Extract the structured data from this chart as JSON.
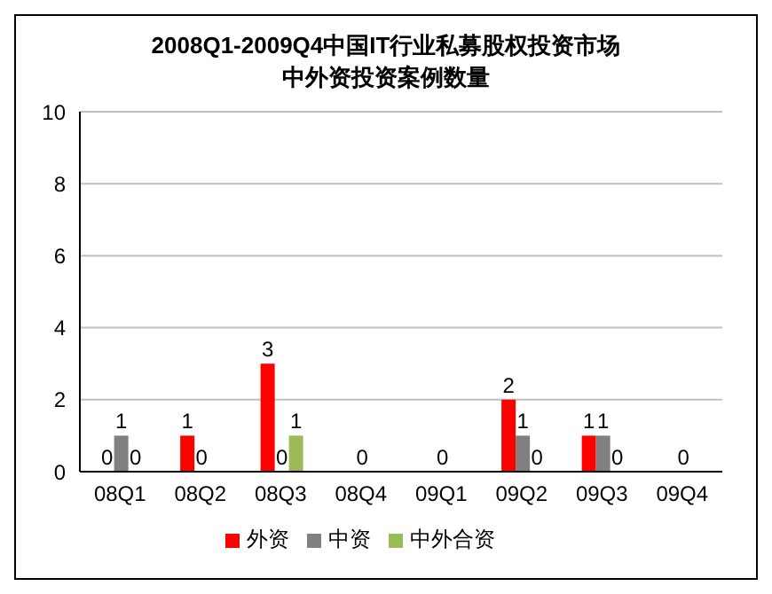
{
  "chart_data": {
    "type": "bar",
    "title": "2008Q1-2009Q4中国IT行业私募股权投资市场",
    "subtitle": "中外资投资案例数量",
    "categories": [
      "08Q1",
      "08Q2",
      "08Q3",
      "08Q4",
      "09Q1",
      "09Q2",
      "09Q3",
      "09Q4"
    ],
    "series": [
      {
        "name": "外资",
        "color": "#ff0000",
        "values": [
          0,
          1,
          3,
          null,
          null,
          2,
          1,
          null
        ]
      },
      {
        "name": "中资",
        "color": "#808080",
        "values": [
          1,
          0,
          0,
          0,
          0,
          1,
          1,
          0
        ]
      },
      {
        "name": "中外合资",
        "color": "#9bbb59",
        "values": [
          0,
          null,
          1,
          null,
          null,
          0,
          0,
          null
        ]
      }
    ],
    "ylim": [
      0,
      10
    ],
    "yticks": [
      0,
      2,
      4,
      6,
      8,
      10
    ],
    "grid": "y",
    "legend": "bottom",
    "data_labels": true
  }
}
